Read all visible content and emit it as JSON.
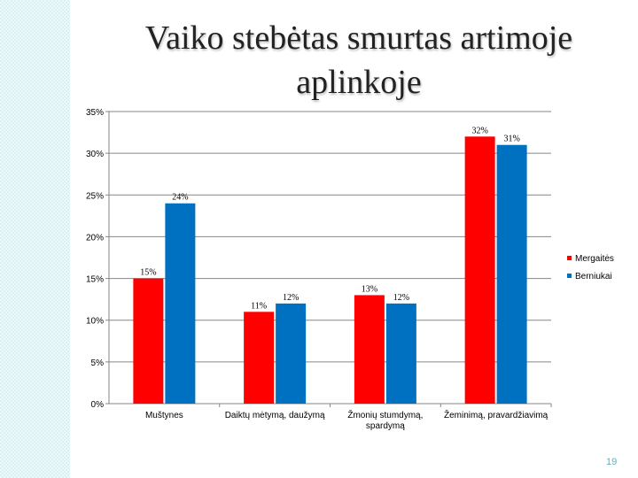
{
  "slide": {
    "title": "Vaiko stebėtas smurtas artimoje aplinkoje",
    "page_number": "19"
  },
  "chart_data": {
    "type": "bar",
    "title": "",
    "xlabel": "",
    "ylabel": "",
    "categories": [
      "Muštynes",
      "Daiktų mėtymą, daužymą",
      "Žmonių stumdymą, spardymą",
      "Žeminimą, pravardžiavimą"
    ],
    "category_lines": [
      [
        "Muštynes"
      ],
      [
        "Daiktų mėtymą, daužymą"
      ],
      [
        "Žmonių stumdymą,",
        "spardymą"
      ],
      [
        "Žeminimą, pravardžiavimą"
      ]
    ],
    "series": [
      {
        "name": "Mergaitės",
        "values": [
          15,
          11,
          13,
          32
        ],
        "labels": [
          "15%",
          "11%",
          "13%",
          "32%"
        ],
        "color": "#ff0000"
      },
      {
        "name": "Berniukai",
        "values": [
          24,
          12,
          12,
          31
        ],
        "labels": [
          "24%",
          "12%",
          "12%",
          "31%"
        ],
        "color": "#0070c0"
      }
    ],
    "ylim": [
      0,
      35
    ],
    "yticks": [
      "0%",
      "5%",
      "10%",
      "15%",
      "20%",
      "25%",
      "30%",
      "35%"
    ],
    "grid": true,
    "legend": "right"
  }
}
